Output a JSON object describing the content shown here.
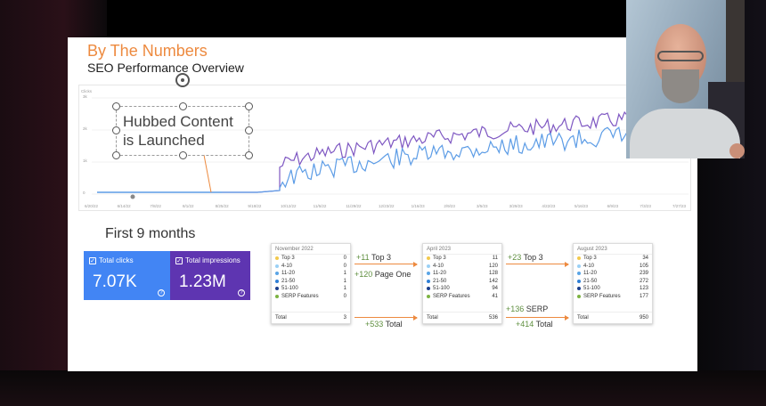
{
  "slide": {
    "title": "By The Numbers",
    "subtitle": "SEO Performance Overview",
    "title_color": "#ed8a3f"
  },
  "chart": {
    "y_axis_title": "Clicks",
    "y_ticks": [
      "3k",
      "2k",
      "1k",
      "0"
    ],
    "x_ticks": [
      "6/20/22",
      "6/14/22",
      "7/8/22",
      "8/1/22",
      "8/25/22",
      "9/18/22",
      "10/12/22",
      "11/5/22",
      "11/29/22",
      "12/23/22",
      "1/16/23",
      "2/9/23",
      "3/5/23",
      "3/29/23",
      "4/22/23",
      "5/16/23",
      "6/9/23",
      "7/3/23",
      "7/27/23"
    ],
    "series_colors": [
      "#7e57c2",
      "#5c9ce6"
    ],
    "annotation": "Hubbed Content is Launched"
  },
  "period_label": "First 9 months",
  "cards": [
    {
      "label": "Total clicks",
      "value": "7.07K",
      "color": "#4285f4"
    },
    {
      "label": "Total impressions",
      "value": "1.23M",
      "color": "#5e35b1"
    }
  ],
  "tables": [
    {
      "header": "November 2022",
      "rows": [
        {
          "label": "Top 3",
          "value": "0",
          "color": "#f2c94c"
        },
        {
          "label": "4-10",
          "value": "0",
          "color": "#9ad0f5"
        },
        {
          "label": "11-20",
          "value": "1",
          "color": "#5aa5e6"
        },
        {
          "label": "21-50",
          "value": "1",
          "color": "#2f7fd6"
        },
        {
          "label": "51-100",
          "value": "1",
          "color": "#1c3f8c"
        },
        {
          "label": "SERP Features",
          "value": "0",
          "color": "#7cb342"
        }
      ],
      "total_label": "Total",
      "total": "3"
    },
    {
      "header": "April 2023",
      "rows": [
        {
          "label": "Top 3",
          "value": "11",
          "color": "#f2c94c"
        },
        {
          "label": "4-10",
          "value": "120",
          "color": "#9ad0f5"
        },
        {
          "label": "11-20",
          "value": "128",
          "color": "#5aa5e6"
        },
        {
          "label": "21-50",
          "value": "142",
          "color": "#2f7fd6"
        },
        {
          "label": "51-100",
          "value": "94",
          "color": "#1c3f8c"
        },
        {
          "label": "SERP Features",
          "value": "41",
          "color": "#7cb342"
        }
      ],
      "total_label": "Total",
      "total": "536"
    },
    {
      "header": "August 2023",
      "rows": [
        {
          "label": "Top 3",
          "value": "34",
          "color": "#f2c94c"
        },
        {
          "label": "4-10",
          "value": "105",
          "color": "#9ad0f5"
        },
        {
          "label": "11-20",
          "value": "239",
          "color": "#5aa5e6"
        },
        {
          "label": "21-50",
          "value": "272",
          "color": "#2f7fd6"
        },
        {
          "label": "51-100",
          "value": "123",
          "color": "#1c3f8c"
        },
        {
          "label": "SERP Features",
          "value": "177",
          "color": "#7cb342"
        }
      ],
      "total_label": "Total",
      "total": "950"
    }
  ],
  "deltas": {
    "a_top3_num": "+11",
    "a_top3_txt": "Top 3",
    "a_page_one_num": "+120",
    "a_page_one_txt": "Page One",
    "a_total_num": "+533",
    "a_total_txt": "Total",
    "b_top3_num": "+23",
    "b_top3_txt": "Top 3",
    "b_serp_num": "+136",
    "b_serp_txt": "SERP",
    "b_total_num": "+414",
    "b_total_txt": "Total"
  }
}
